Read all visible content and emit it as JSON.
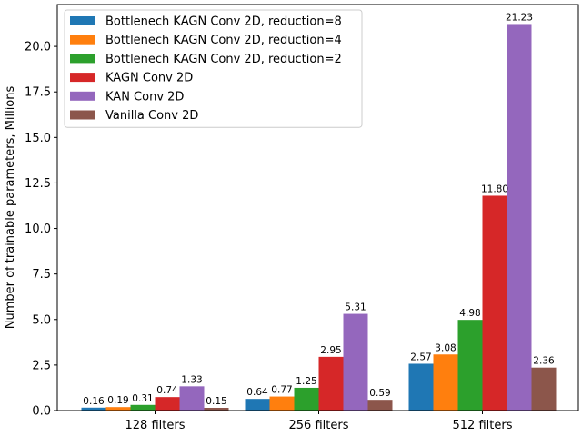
{
  "chart_data": {
    "type": "bar",
    "categories": [
      "128 filters",
      "256 filters",
      "512 filters"
    ],
    "ylabel": "Number of trainable parameters, Millions",
    "xlabel": "",
    "ylim": [
      0,
      22.3
    ],
    "yticks": [
      0.0,
      2.5,
      5.0,
      7.5,
      10.0,
      12.5,
      15.0,
      17.5,
      20.0
    ],
    "ytick_labels": [
      "0.0",
      "2.5",
      "5.0",
      "7.5",
      "10.0",
      "12.5",
      "15.0",
      "17.5",
      "20.0"
    ],
    "grid": false,
    "legend_position": "top-left",
    "series": [
      {
        "name": "Bottlenech KAGN Conv 2D, reduction=8",
        "color": "#1f77b4",
        "values": [
          0.16,
          0.64,
          2.57
        ],
        "labels": [
          "0.16",
          "0.64",
          "2.57"
        ]
      },
      {
        "name": "Bottlenech KAGN Conv 2D, reduction=4",
        "color": "#ff7f0e",
        "values": [
          0.19,
          0.77,
          3.08
        ],
        "labels": [
          "0.19",
          "0.77",
          "3.08"
        ]
      },
      {
        "name": "Bottlenech KAGN Conv 2D, reduction=2",
        "color": "#2ca02c",
        "values": [
          0.31,
          1.25,
          4.98
        ],
        "labels": [
          "0.31",
          "1.25",
          "4.98"
        ]
      },
      {
        "name": "KAGN Conv 2D",
        "color": "#d62728",
        "values": [
          0.74,
          2.95,
          11.8
        ],
        "labels": [
          "0.74",
          "2.95",
          "11.80"
        ]
      },
      {
        "name": "KAN Conv 2D",
        "color": "#9467bd",
        "values": [
          1.33,
          5.31,
          21.23
        ],
        "labels": [
          "1.33",
          "5.31",
          "21.23"
        ]
      },
      {
        "name": "Vanilla Conv 2D",
        "color": "#8c564b",
        "values": [
          0.15,
          0.59,
          2.36
        ],
        "labels": [
          "0.15",
          "0.59",
          "2.36"
        ]
      }
    ]
  }
}
